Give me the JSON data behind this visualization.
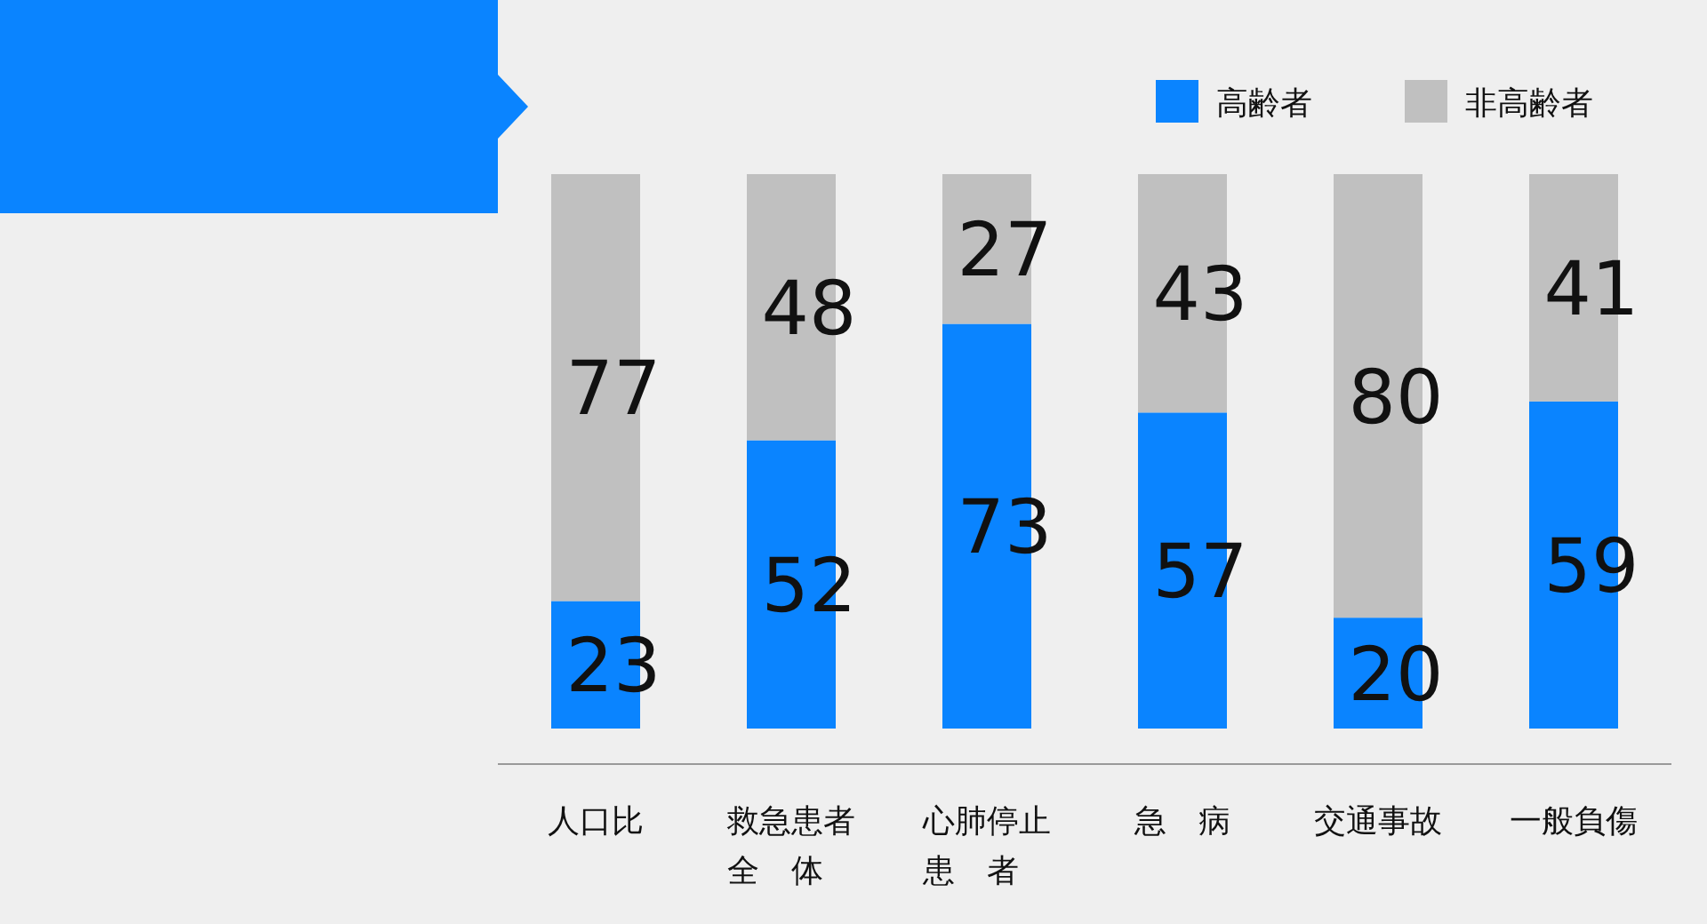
{
  "chart_data": {
    "type": "bar",
    "stacked": true,
    "data_labels": true,
    "legend": "top right",
    "categories": [
      "人口比",
      "救急患者全体",
      "心肺停止患者",
      "急　病",
      "交通事故",
      "一般負傷"
    ],
    "series": [
      {
        "name": "高齢者",
        "color": "#0a84ff",
        "values": [
          23,
          52,
          73,
          57,
          20,
          59
        ]
      },
      {
        "name": "非高齢者",
        "color": "#c0c0c0",
        "values": [
          77,
          48,
          27,
          43,
          80,
          41
        ]
      }
    ]
  }
}
